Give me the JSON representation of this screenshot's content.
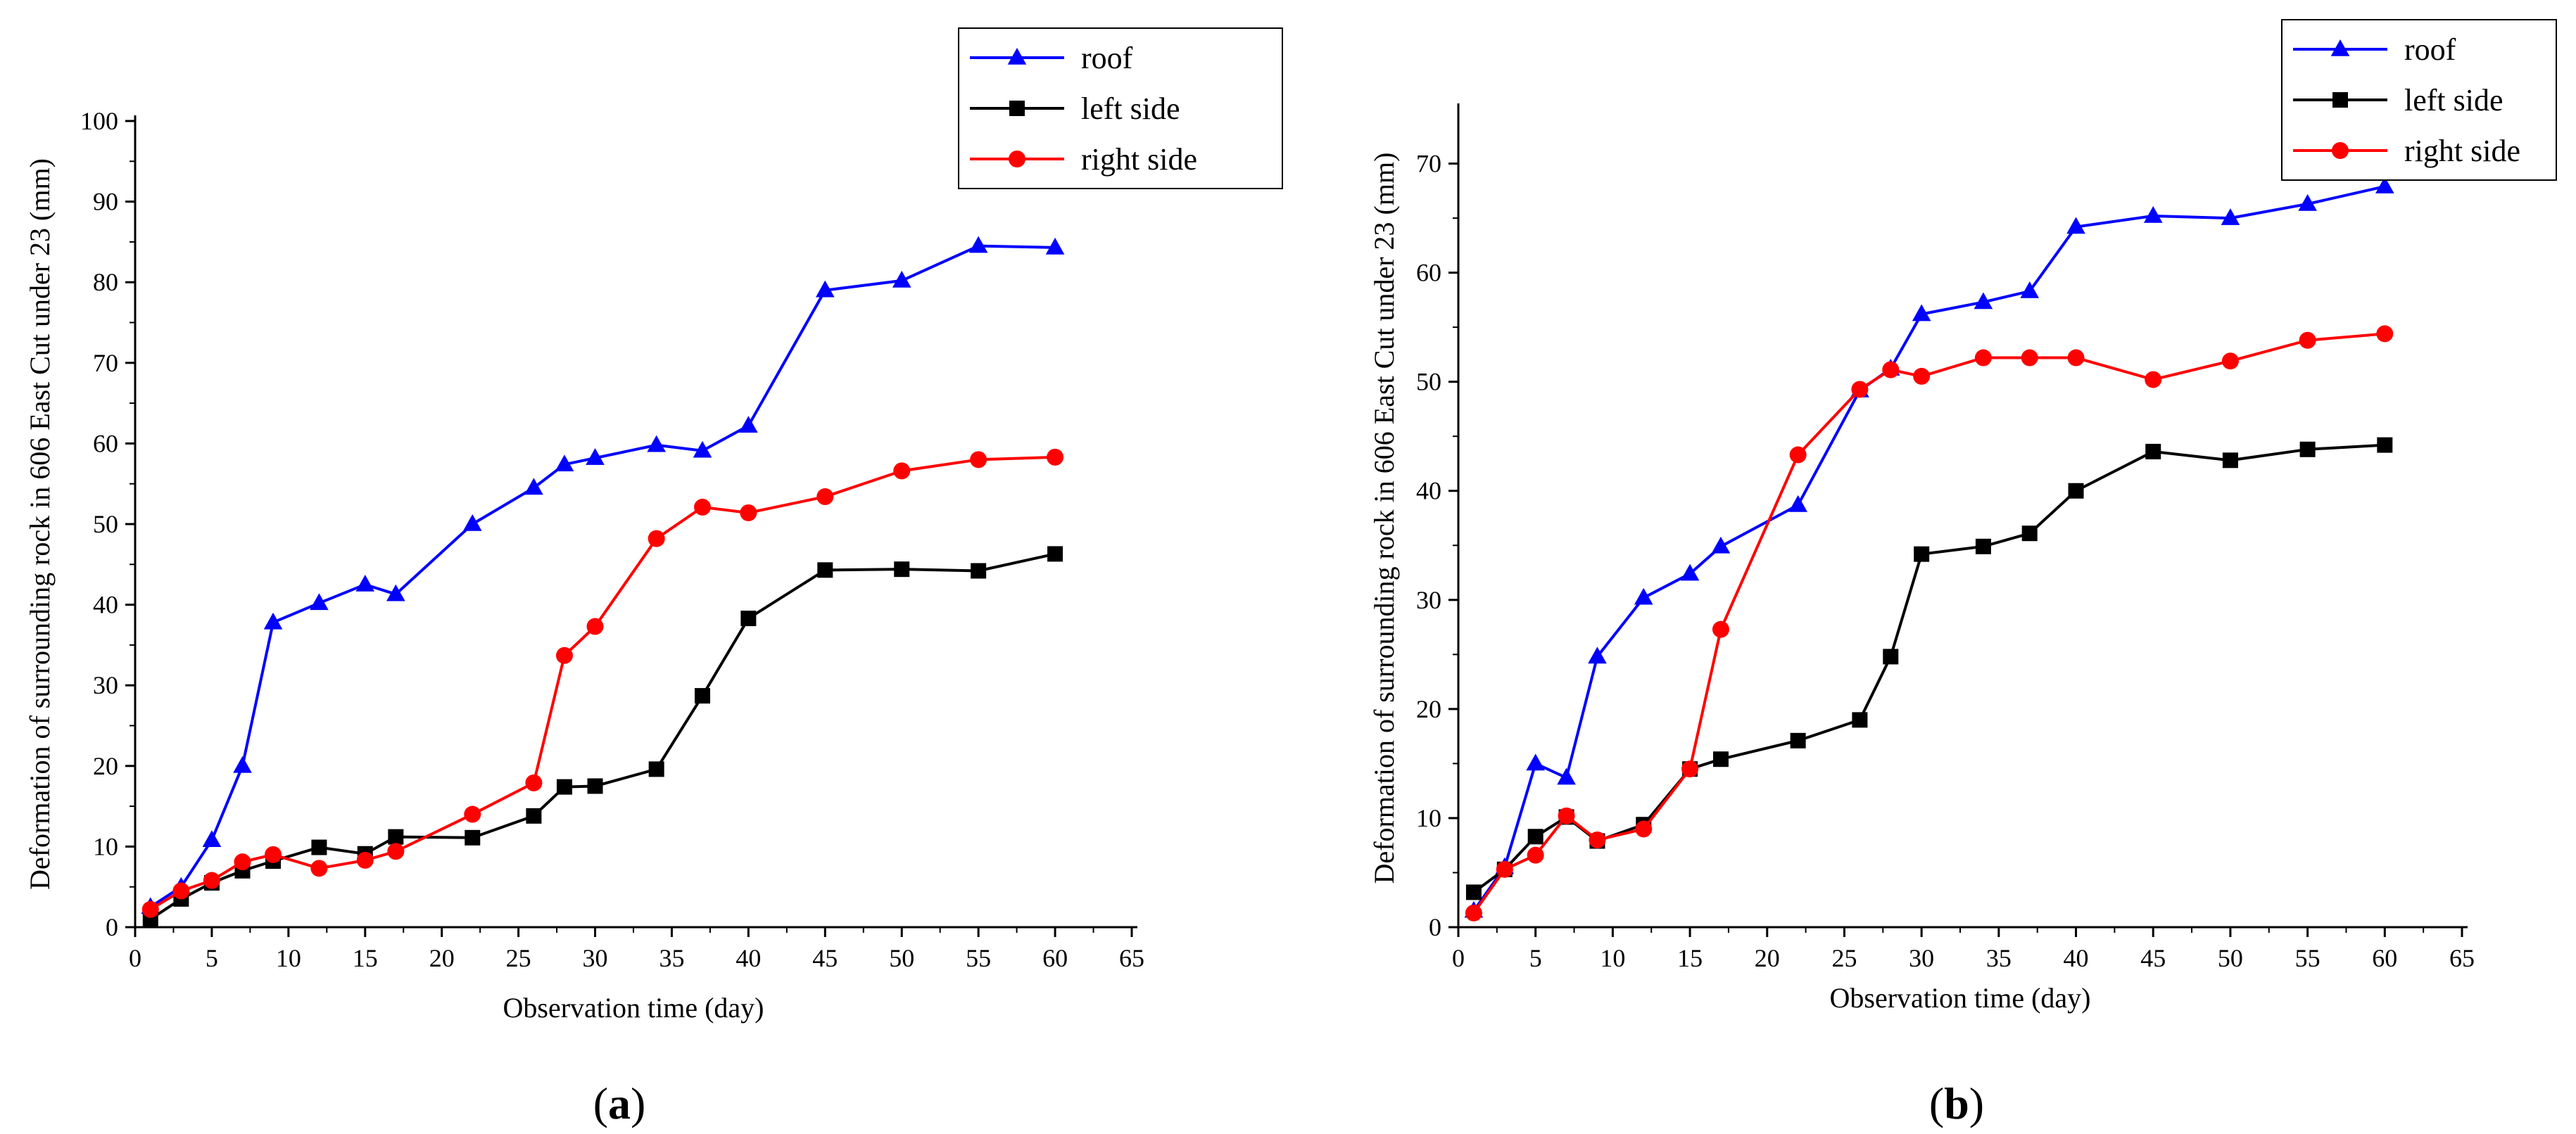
{
  "colors": {
    "roof": "#0000ff",
    "left": "#000000",
    "right": "#ff0000"
  },
  "chart_data": [
    {
      "type": "line",
      "panel_label_open": "(",
      "panel_label": "a",
      "panel_label_close": ")",
      "xlabel": "Observation time (day)",
      "ylabel": "Deformation of surrounding rock in 606 East Cut under 23 (mm)",
      "xlim": [
        0,
        65
      ],
      "ylim": [
        0,
        100
      ],
      "xticks": [
        0,
        5,
        10,
        15,
        20,
        25,
        30,
        35,
        40,
        45,
        50,
        55,
        60,
        65
      ],
      "yticks": [
        0,
        10,
        20,
        30,
        40,
        50,
        60,
        70,
        80,
        90,
        100
      ],
      "grid": false,
      "legend_position": "top-right",
      "series": [
        {
          "name": "roof",
          "color": "#0000ff",
          "marker": "triangle",
          "x": [
            1,
            3,
            5,
            7,
            9,
            12,
            15,
            17,
            22,
            26,
            28,
            30,
            34,
            37,
            40,
            45,
            50,
            55,
            60
          ],
          "y": [
            2.5,
            5,
            10.8,
            20,
            37.8,
            40.2,
            42.5,
            41.3,
            50,
            54.5,
            57.4,
            58.2,
            59.8,
            59.1,
            62.2,
            79,
            80.2,
            84.5,
            84.3
          ]
        },
        {
          "name": "left side",
          "color": "#000000",
          "marker": "square",
          "x": [
            1,
            3,
            5,
            7,
            9,
            12,
            15,
            17,
            22,
            26,
            28,
            30,
            34,
            37,
            40,
            45,
            50,
            55,
            60
          ],
          "y": [
            1,
            3.5,
            5.5,
            7,
            8.2,
            9.9,
            9.1,
            11.2,
            11.1,
            13.8,
            17.4,
            17.5,
            19.6,
            28.7,
            38.3,
            44.3,
            44.4,
            44.2,
            46.3
          ]
        },
        {
          "name": "right side",
          "color": "#ff0000",
          "marker": "circle",
          "x": [
            1,
            3,
            5,
            7,
            9,
            12,
            15,
            17,
            22,
            26,
            28,
            30,
            34,
            37,
            40,
            45,
            50,
            55,
            60
          ],
          "y": [
            2.2,
            4.5,
            5.8,
            8.1,
            9,
            7.3,
            8.3,
            9.4,
            14,
            17.9,
            33.7,
            37.3,
            48.2,
            52.1,
            51.4,
            53.4,
            56.6,
            58,
            58.3
          ]
        }
      ]
    },
    {
      "type": "line",
      "panel_label_open": "(",
      "panel_label": "b",
      "panel_label_close": ")",
      "xlabel": "Observation time (day)",
      "ylabel": "Deformation of surrounding rock in 606 East Cut under 23 (mm)",
      "xlim": [
        0,
        65
      ],
      "ylim": [
        0,
        75
      ],
      "xticks": [
        0,
        5,
        10,
        15,
        20,
        25,
        30,
        35,
        40,
        45,
        50,
        55,
        60,
        65
      ],
      "yticks": [
        0,
        10,
        20,
        30,
        40,
        50,
        60,
        70
      ],
      "grid": false,
      "legend_position": "top-right",
      "series": [
        {
          "name": "roof",
          "color": "#0000ff",
          "marker": "triangle",
          "x": [
            1,
            3,
            5,
            7,
            9,
            12,
            15,
            17,
            22,
            26,
            28,
            30,
            34,
            37,
            40,
            45,
            50,
            55,
            60
          ],
          "y": [
            1.5,
            5.5,
            15,
            13.7,
            24.8,
            30.2,
            32.4,
            34.9,
            38.7,
            49.2,
            51.2,
            56.2,
            57.3,
            58.3,
            64.2,
            65.2,
            65,
            66.3,
            67.9
          ]
        },
        {
          "name": "left side",
          "color": "#000000",
          "marker": "square",
          "x": [
            1,
            3,
            5,
            7,
            9,
            12,
            15,
            17,
            22,
            26,
            28,
            30,
            34,
            37,
            40,
            45,
            50,
            55,
            60
          ],
          "y": [
            3.2,
            5.3,
            8.3,
            10.1,
            7.9,
            9.4,
            14.5,
            15.4,
            17.1,
            19,
            24.8,
            34.2,
            34.9,
            36.1,
            40,
            43.6,
            42.8,
            43.8,
            44.2
          ]
        },
        {
          "name": "right side",
          "color": "#ff0000",
          "marker": "circle",
          "x": [
            1,
            3,
            5,
            7,
            9,
            12,
            15,
            17,
            22,
            26,
            28,
            30,
            34,
            37,
            40,
            45,
            50,
            55,
            60
          ],
          "y": [
            1.3,
            5.3,
            6.6,
            10.2,
            8,
            9,
            14.5,
            27.3,
            43.3,
            49.3,
            51.1,
            50.5,
            52.2,
            52.2,
            52.2,
            50.2,
            51.9,
            53.8,
            54.4
          ]
        }
      ]
    }
  ]
}
